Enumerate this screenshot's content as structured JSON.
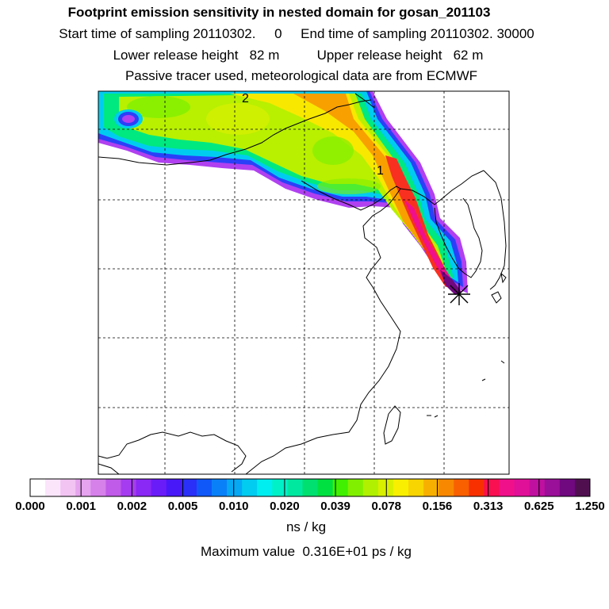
{
  "header": {
    "title": "Footprint emission sensitivity in nested domain for gosan_201103",
    "sampling_line": "Start time of sampling 20110302.     0     End time of sampling 20110302. 30000",
    "height_line": "Lower release height   82 m          Upper release height   62 m",
    "tracer_line": "Passive tracer used, meteorological data are from ECMWF"
  },
  "map": {
    "contour_labels": [
      "2",
      "1"
    ],
    "receptor_marker": "star-marker-icon",
    "grid": "dashed"
  },
  "colorbar": {
    "tick_labels": [
      "0.000",
      "0.001",
      "0.002",
      "0.005",
      "0.010",
      "0.020",
      "0.039",
      "0.078",
      "0.156",
      "0.313",
      "0.625",
      "1.250"
    ],
    "units": "ns / kg",
    "colors": [
      "#ffffff",
      "#fbe5fb",
      "#f2c4f2",
      "#e6a3ee",
      "#d680ea",
      "#c05ae8",
      "#a63cf0",
      "#8a28f5",
      "#6a1cf8",
      "#4818f8",
      "#2a30f8",
      "#1058f8",
      "#0a80f8",
      "#06a8f4",
      "#02ccf0",
      "#00eef0",
      "#00f0c8",
      "#00e8a0",
      "#00e070",
      "#00e040",
      "#40f000",
      "#80f000",
      "#b0f000",
      "#d8f000",
      "#f8f000",
      "#f8d400",
      "#f8b000",
      "#f88800",
      "#f86000",
      "#f83000",
      "#f81050",
      "#f0108a",
      "#e01098",
      "#c010a0",
      "#9a1098",
      "#700880",
      "#501050"
    ]
  },
  "footer": {
    "max_value": "Maximum value  0.316E+01 ps / kg"
  }
}
